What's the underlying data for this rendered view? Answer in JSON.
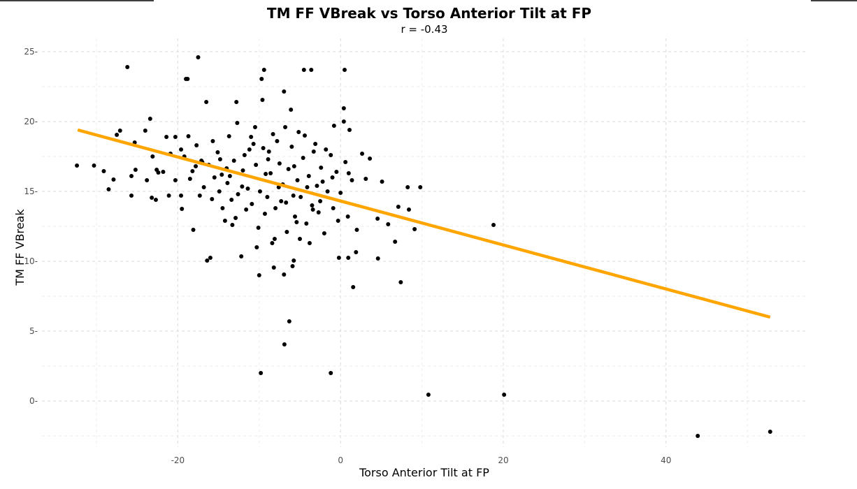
{
  "chart_data": {
    "type": "scatter",
    "title": "TM FF VBreak vs Torso Anterior Tilt at FP",
    "subtitle": "r =  -0.43",
    "xlabel": "Torso Anterior Tilt at FP",
    "ylabel": "TM FF VBreak",
    "xlim": [
      -36.7,
      57.2
    ],
    "ylim": [
      -3.3,
      25.95
    ],
    "x_ticks": [
      -20,
      0,
      20,
      40
    ],
    "x_tick_labels": [
      "-20",
      "0",
      "20",
      "40"
    ],
    "y_ticks": [
      0,
      5,
      10,
      15,
      20,
      25
    ],
    "y_tick_labels": [
      "0",
      "5",
      "10",
      "15",
      "20",
      "25"
    ],
    "grid": true,
    "point_color": "#000000",
    "fit_line": {
      "color": "#FFA500",
      "x": [
        -32.3,
        52.8
      ],
      "y": [
        19.4,
        6.0
      ]
    },
    "points": [
      [
        -32.4,
        16.85
      ],
      [
        -30.3,
        16.85
      ],
      [
        -29.1,
        16.45
      ],
      [
        -28.5,
        15.15
      ],
      [
        -27.9,
        15.85
      ],
      [
        -27.5,
        19.05
      ],
      [
        -27.1,
        19.35
      ],
      [
        -26.2,
        23.9
      ],
      [
        -25.7,
        16.1
      ],
      [
        -25.7,
        14.7
      ],
      [
        -25.3,
        18.5
      ],
      [
        -25.2,
        16.55
      ],
      [
        -24,
        19.35
      ],
      [
        -23.8,
        15.8
      ],
      [
        -23.4,
        20.2
      ],
      [
        -23.2,
        14.55
      ],
      [
        -23.1,
        17.5
      ],
      [
        -22.7,
        14.4
      ],
      [
        -22.6,
        16.55
      ],
      [
        -22.4,
        16.35
      ],
      [
        -21.4,
        18.9
      ],
      [
        -21.1,
        14.7
      ],
      [
        -20.9,
        17.7
      ],
      [
        -20.3,
        18.9
      ],
      [
        -19.6,
        18.0
      ],
      [
        -19.6,
        14.7
      ],
      [
        -19.5,
        13.75
      ],
      [
        -19.0,
        23.05
      ],
      [
        -18.8,
        23.05
      ],
      [
        -18.7,
        18.95
      ],
      [
        -18.2,
        16.45
      ],
      [
        -18.1,
        12.25
      ],
      [
        -17.8,
        16.8
      ],
      [
        -17.5,
        24.6
      ],
      [
        -17.3,
        14.7
      ],
      [
        -17.1,
        17.2
      ],
      [
        -16.5,
        21.4
      ],
      [
        -16.4,
        10.05
      ],
      [
        -16.0,
        10.25
      ],
      [
        -15.8,
        14.45
      ],
      [
        -15.5,
        16.0
      ],
      [
        -14.8,
        17.3
      ],
      [
        -14.5,
        13.8
      ],
      [
        -14.0,
        16.65
      ],
      [
        -13.7,
        18.95
      ],
      [
        -13.3,
        12.6
      ],
      [
        -12.8,
        21.4
      ],
      [
        -12.7,
        19.9
      ],
      [
        -12.2,
        10.35
      ],
      [
        -12.1,
        15.35
      ],
      [
        -11.6,
        13.7
      ],
      [
        -11.2,
        18.0
      ],
      [
        -10.7,
        18.4
      ],
      [
        -10.5,
        19.6
      ],
      [
        -10.3,
        11.0
      ],
      [
        -10.0,
        9.0
      ],
      [
        -9.8,
        2.0
      ],
      [
        -9.7,
        23.05
      ],
      [
        -9.6,
        21.55
      ],
      [
        -9.4,
        23.7
      ],
      [
        -9.2,
        16.25
      ],
      [
        -8.8,
        17.85
      ],
      [
        -8.3,
        19.1
      ],
      [
        -8.2,
        9.55
      ],
      [
        -8.1,
        11.6
      ],
      [
        -7.6,
        15.3
      ],
      [
        -6.95,
        9.05
      ],
      [
        -6.95,
        22.15
      ],
      [
        -6.9,
        4.05
      ],
      [
        -6.3,
        5.7
      ],
      [
        -6.1,
        20.85
      ],
      [
        -5.9,
        9.65
      ],
      [
        -5.75,
        10.05
      ],
      [
        -5.7,
        16.8
      ],
      [
        -5.15,
        19.25
      ],
      [
        -4.5,
        23.7
      ],
      [
        -3.6,
        23.7
      ],
      [
        -3.3,
        17.85
      ],
      [
        -2.2,
        15.7
      ],
      [
        -1.2,
        2.0
      ],
      [
        -0.8,
        19.7
      ],
      [
        -0.2,
        10.25
      ],
      [
        0.5,
        23.7
      ],
      [
        0.4,
        20.95
      ],
      [
        0.4,
        20.0
      ],
      [
        1.1,
        19.4
      ],
      [
        1.55,
        8.15
      ],
      [
        1.9,
        10.65
      ],
      [
        0.95,
        10.25
      ],
      [
        2.0,
        12.25
      ],
      [
        2.65,
        17.7
      ],
      [
        3.1,
        15.9
      ],
      [
        3.6,
        17.35
      ],
      [
        4.55,
        13.05
      ],
      [
        4.6,
        10.2
      ],
      [
        5.1,
        15.7
      ],
      [
        5.85,
        12.65
      ],
      [
        6.7,
        11.4
      ],
      [
        7.1,
        13.9
      ],
      [
        7.4,
        8.5
      ],
      [
        8.25,
        15.3
      ],
      [
        8.4,
        13.7
      ],
      [
        9.1,
        12.3
      ],
      [
        9.8,
        15.3
      ],
      [
        10.8,
        0.45
      ],
      [
        18.8,
        12.6
      ],
      [
        20.1,
        0.45
      ],
      [
        43.9,
        -2.5
      ],
      [
        52.8,
        -2.2
      ],
      [
        -17,
        17.1
      ],
      [
        -16.2,
        16.9
      ],
      [
        -15.1,
        17.8
      ],
      [
        -14.6,
        16.2
      ],
      [
        -13.9,
        15.6
      ],
      [
        -13.1,
        17.2
      ],
      [
        -12.6,
        14.8
      ],
      [
        -12.0,
        16.5
      ],
      [
        -11.4,
        15.2
      ],
      [
        -10.9,
        14.1
      ],
      [
        -10.4,
        16.9
      ],
      [
        -9.9,
        15.0
      ],
      [
        -9.5,
        18.1
      ],
      [
        -9.0,
        14.6
      ],
      [
        -8.6,
        16.3
      ],
      [
        -8.0,
        13.8
      ],
      [
        -7.5,
        17.0
      ],
      [
        -7.1,
        15.5
      ],
      [
        -6.7,
        14.2
      ],
      [
        -6.4,
        16.6
      ],
      [
        -6.0,
        18.2
      ],
      [
        -5.6,
        13.2
      ],
      [
        -5.3,
        15.8
      ],
      [
        -4.9,
        14.6
      ],
      [
        -4.6,
        17.4
      ],
      [
        -4.2,
        12.7
      ],
      [
        -3.9,
        16.1
      ],
      [
        -3.5,
        14.0
      ],
      [
        -3.1,
        18.4
      ],
      [
        -2.7,
        13.5
      ],
      [
        -2.4,
        16.7
      ],
      [
        -2.0,
        12.0
      ],
      [
        -1.6,
        15.0
      ],
      [
        -1.2,
        17.6
      ],
      [
        -0.9,
        13.8
      ],
      [
        -0.5,
        16.4
      ],
      [
        0.0,
        14.9
      ],
      [
        0.6,
        17.1
      ],
      [
        0.9,
        13.2
      ],
      [
        1.4,
        15.8
      ],
      [
        -15.7,
        18.6
      ],
      [
        -14.2,
        12.9
      ],
      [
        -13.4,
        14.4
      ],
      [
        -11.8,
        17.6
      ],
      [
        -10.1,
        12.4
      ],
      [
        -8.4,
        11.3
      ],
      [
        -7.8,
        18.6
      ],
      [
        -6.6,
        12.1
      ],
      [
        -5.0,
        11.6
      ],
      [
        -4.4,
        19.0
      ],
      [
        -3.8,
        11.3
      ],
      [
        -2.9,
        15.4
      ],
      [
        -1.8,
        18.0
      ],
      [
        -0.3,
        12.9
      ],
      [
        1.0,
        16.3
      ],
      [
        -18.5,
        15.9
      ],
      [
        -16.8,
        15.3
      ],
      [
        -19.2,
        17.5
      ],
      [
        -14.9,
        15.0
      ],
      [
        -12.9,
        13.1
      ],
      [
        -9.3,
        13.4
      ],
      [
        -7.3,
        14.3
      ],
      [
        -5.8,
        14.7
      ],
      [
        -4.1,
        15.3
      ],
      [
        -2.5,
        14.3
      ],
      [
        -1.0,
        16.0
      ],
      [
        -6.8,
        19.6
      ],
      [
        -8.9,
        17.3
      ],
      [
        -11.0,
        18.9
      ],
      [
        -13.6,
        16.1
      ],
      [
        -17.7,
        18.3
      ],
      [
        -20.3,
        15.8
      ],
      [
        -21.8,
        16.4
      ],
      [
        -3.4,
        13.7
      ],
      [
        -5.4,
        12.8
      ]
    ]
  }
}
